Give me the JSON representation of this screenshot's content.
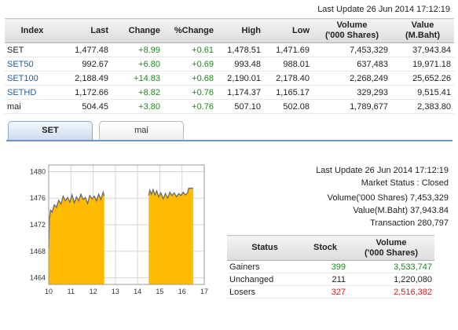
{
  "header": {
    "last_update": "Last Update 26 Jun 2014 17:12:19"
  },
  "index_table": {
    "columns": {
      "index": "Index",
      "last": "Last",
      "change": "Change",
      "pct_change": "%Change",
      "high": "High",
      "low": "Low",
      "volume_line1": "Volume",
      "volume_line2": "('000 Shares)",
      "value_line1": "Value",
      "value_line2": "(M.Baht)"
    },
    "rows": [
      {
        "index": "SET",
        "last": "1,477.48",
        "change": "+8.99",
        "pct_change": "+0.61",
        "high": "1,478.51",
        "low": "1,471.69",
        "volume": "7,453,329",
        "value": "37,943.84"
      },
      {
        "index": "SET50",
        "last": "992.67",
        "change": "+6.80",
        "pct_change": "+0.69",
        "high": "993.48",
        "low": "988.01",
        "volume": "637,483",
        "value": "19,971.18"
      },
      {
        "index": "SET100",
        "last": "2,188.49",
        "change": "+14.83",
        "pct_change": "+0.68",
        "high": "2,190.01",
        "low": "2,178.40",
        "volume": "2,268,249",
        "value": "25,652.26"
      },
      {
        "index": "SETHD",
        "last": "1,172.66",
        "change": "+8.82",
        "pct_change": "+0.76",
        "high": "1,174.37",
        "low": "1,165.17",
        "volume": "329,293",
        "value": "9,515.41"
      },
      {
        "index": "mai",
        "last": "504.45",
        "change": "+3.80",
        "pct_change": "+0.76",
        "high": "507.10",
        "low": "502.08",
        "volume": "1,789,677",
        "value": "2,383.80"
      }
    ]
  },
  "tabs": [
    {
      "label": "SET",
      "active": true
    },
    {
      "label": "mai",
      "active": false
    }
  ],
  "chart_data": {
    "type": "area",
    "title": "",
    "xlabel": "",
    "ylabel": "",
    "x_ticks": [
      "10",
      "11",
      "12",
      "13",
      "14",
      "15",
      "16",
      "17"
    ],
    "y_ticks": [
      "1480",
      "1476",
      "1472",
      "1468",
      "1464"
    ],
    "ylim": [
      1463,
      1481
    ],
    "x_range": [
      10,
      17
    ],
    "grid": true,
    "fill_color": "#ffbb00",
    "line_color": "#6a6a6a",
    "sessions": [
      {
        "points": [
          [
            10.0,
            1468.5
          ],
          [
            10.03,
            1472.8
          ],
          [
            10.08,
            1474.2
          ],
          [
            10.15,
            1473.9
          ],
          [
            10.25,
            1475.0
          ],
          [
            10.35,
            1474.6
          ],
          [
            10.45,
            1475.7
          ],
          [
            10.55,
            1475.1
          ],
          [
            10.65,
            1476.3
          ],
          [
            10.75,
            1475.6
          ],
          [
            10.85,
            1476.1
          ],
          [
            10.95,
            1475.4
          ],
          [
            11.05,
            1476.5
          ],
          [
            11.15,
            1475.3
          ],
          [
            11.25,
            1476.2
          ],
          [
            11.35,
            1475.6
          ],
          [
            11.45,
            1476.6
          ],
          [
            11.55,
            1475.8
          ],
          [
            11.65,
            1476.1
          ],
          [
            11.75,
            1475.2
          ],
          [
            11.85,
            1476.4
          ],
          [
            11.95,
            1475.9
          ],
          [
            12.05,
            1476.3
          ],
          [
            12.15,
            1475.6
          ],
          [
            12.25,
            1476.6
          ],
          [
            12.35,
            1475.8
          ],
          [
            12.45,
            1476.9
          ],
          [
            12.5,
            1476.3
          ]
        ]
      },
      {
        "points": [
          [
            14.5,
            1476.4
          ],
          [
            14.55,
            1477.2
          ],
          [
            14.62,
            1476.6
          ],
          [
            14.7,
            1477.3
          ],
          [
            14.78,
            1476.5
          ],
          [
            14.86,
            1477.1
          ],
          [
            14.95,
            1476.2
          ],
          [
            15.05,
            1476.8
          ],
          [
            15.15,
            1475.9
          ],
          [
            15.25,
            1476.7
          ],
          [
            15.35,
            1476.0
          ],
          [
            15.45,
            1476.9
          ],
          [
            15.55,
            1476.4
          ],
          [
            15.65,
            1476.8
          ],
          [
            15.75,
            1476.2
          ],
          [
            15.85,
            1476.7
          ],
          [
            15.95,
            1476.4
          ],
          [
            16.05,
            1476.9
          ],
          [
            16.15,
            1476.5
          ],
          [
            16.25,
            1476.8
          ],
          [
            16.3,
            1477.5
          ],
          [
            16.5,
            1477.5
          ]
        ]
      }
    ]
  },
  "market_info": {
    "last_update": "Last Update 26 Jun 2014 17:12:19",
    "status": "Market Status : Closed",
    "volume": "Volume('000 Shares) 7,453,329",
    "value": "Value(M.Baht) 37,943.84",
    "transaction": "Transaction 280,797"
  },
  "status_table": {
    "columns": {
      "status": "Status",
      "stock": "Stock",
      "volume_line1": "Volume",
      "volume_line2": "('000 Shares)"
    },
    "rows": [
      {
        "status": "Gainers",
        "stock": "399",
        "volume": "3,533,747",
        "color": "#1d8a1d"
      },
      {
        "status": "Unchanged",
        "stock": "211",
        "volume": "1,220,080",
        "color": "#222222"
      },
      {
        "status": "Losers",
        "stock": "327",
        "volume": "2,516,382",
        "color": "#d42020"
      }
    ]
  }
}
